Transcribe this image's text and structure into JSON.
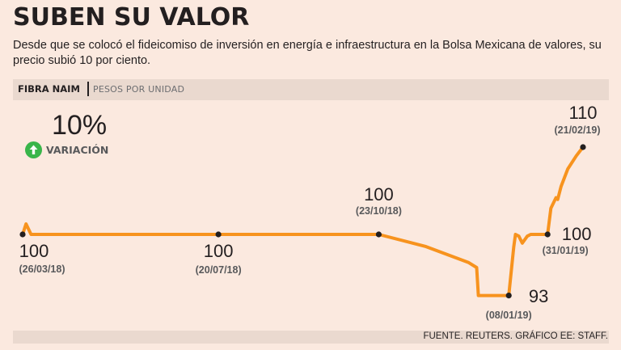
{
  "header": {
    "title": "SUBEN SU VALOR",
    "subtitle": "Desde que se colocó el fideicomiso de inversión  en energía e infraestructura en la Bolsa Mexicana de valores, su precio subió  10 por ciento."
  },
  "band": {
    "series": "FIBRA NAIM",
    "unit": "PESOS POR UNIDAD"
  },
  "variation": {
    "value": "10%",
    "label": "VARIACIÓN",
    "icon": "arrow-up-circle-icon",
    "icon_color": "#39b54a"
  },
  "colors": {
    "line": "#f7931e",
    "background": "#fbe9df",
    "band": "#ead9cf"
  },
  "chart_data": {
    "type": "line",
    "title": "SUBEN SU VALOR",
    "xlabel": "",
    "ylabel": "PESOS POR UNIDAD",
    "x_range": [
      "26/03/18",
      "21/02/19"
    ],
    "ylim": [
      90,
      112
    ],
    "grid": false,
    "series": [
      {
        "name": "FIBRA NAIM",
        "points": [
          {
            "x": "26/03/18",
            "y": 100
          },
          {
            "x": "28/03/18",
            "y": 101.2
          },
          {
            "x": "31/03/18",
            "y": 100
          },
          {
            "x": "20/07/18",
            "y": 100
          },
          {
            "x": "23/10/18",
            "y": 100
          },
          {
            "x": "20/11/18",
            "y": 98.6
          },
          {
            "x": "15/12/18",
            "y": 96.8
          },
          {
            "x": "20/12/18",
            "y": 96.2
          },
          {
            "x": "21/12/18",
            "y": 93
          },
          {
            "x": "08/01/19",
            "y": 93
          },
          {
            "x": "11/01/19",
            "y": 98.6
          },
          {
            "x": "12/01/19",
            "y": 100
          },
          {
            "x": "14/01/19",
            "y": 99.8
          },
          {
            "x": "16/01/19",
            "y": 99
          },
          {
            "x": "19/01/19",
            "y": 99.8
          },
          {
            "x": "21/01/19",
            "y": 100
          },
          {
            "x": "31/01/19",
            "y": 100
          },
          {
            "x": "02/02/19",
            "y": 103
          },
          {
            "x": "05/02/19",
            "y": 104.2
          },
          {
            "x": "06/02/19",
            "y": 104
          },
          {
            "x": "08/02/19",
            "y": 105.5
          },
          {
            "x": "12/02/19",
            "y": 107.5
          },
          {
            "x": "17/02/19",
            "y": 109
          },
          {
            "x": "21/02/19",
            "y": 110
          }
        ]
      }
    ],
    "markers": [
      {
        "x": "26/03/18",
        "y": 100,
        "value_label": "100",
        "date_label": "(26/03/18)"
      },
      {
        "x": "20/07/18",
        "y": 100,
        "value_label": "100",
        "date_label": "(20/07/18)"
      },
      {
        "x": "23/10/18",
        "y": 100,
        "value_label": "100",
        "date_label": "(23/10/18)"
      },
      {
        "x": "08/01/19",
        "y": 93,
        "value_label": "93",
        "date_label": "(08/01/19)"
      },
      {
        "x": "31/01/19",
        "y": 100,
        "value_label": "100",
        "date_label": "(31/01/19)"
      },
      {
        "x": "21/02/19",
        "y": 110,
        "value_label": "110",
        "date_label": "(21/02/19)"
      }
    ]
  },
  "footer": {
    "source": "FUENTE. REUTERS. GRÁFICO EE: STAFF."
  }
}
